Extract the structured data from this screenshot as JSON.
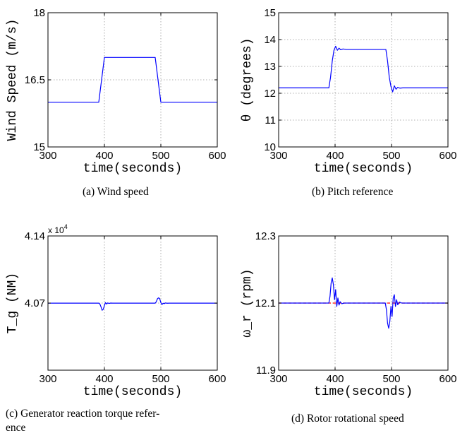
{
  "chart_data": [
    {
      "id": "a",
      "type": "line",
      "ylabel": "Wind Speed (m/s)",
      "xlabel": "time(seconds)",
      "xlim": [
        300,
        600
      ],
      "ylim": [
        15,
        18
      ],
      "xticks": [
        "300",
        "400",
        "500",
        "600"
      ],
      "yticks": [
        "15",
        "16.5",
        "18"
      ],
      "grid": true,
      "caption": "(a) Wind speed",
      "series": [
        {
          "color": "#0000ff",
          "x": [
            300,
            390,
            400,
            490,
            500,
            600
          ],
          "y": [
            16,
            16,
            17,
            17,
            16,
            16
          ]
        }
      ]
    },
    {
      "id": "b",
      "type": "line",
      "ylabel": "θ (degrees)",
      "xlabel": "time(seconds)",
      "xlim": [
        300,
        600
      ],
      "ylim": [
        10,
        15
      ],
      "xticks": [
        "300",
        "400",
        "500",
        "600"
      ],
      "yticks": [
        "10",
        "11",
        "12",
        "13",
        "14",
        "15"
      ],
      "grid": true,
      "caption": "(b) Pitch reference",
      "series": [
        {
          "color": "#0000ff",
          "x": [
            300,
            389,
            392,
            395,
            398,
            401,
            404,
            407,
            410,
            414,
            420,
            490,
            493,
            496,
            499,
            502,
            505,
            508,
            511,
            515,
            520,
            600
          ],
          "y": [
            12.2,
            12.2,
            12.6,
            13.2,
            13.6,
            13.75,
            13.6,
            13.68,
            13.62,
            13.65,
            13.63,
            13.63,
            13.2,
            12.6,
            12.25,
            12.05,
            12.28,
            12.15,
            12.22,
            12.19,
            12.2,
            12.2
          ]
        }
      ]
    },
    {
      "id": "c",
      "type": "line",
      "ylabel": "T_g (NM)",
      "xlabel": "time(seconds)",
      "xlim": [
        300,
        600
      ],
      "ylim": [
        4.0,
        4.14
      ],
      "y_exponent": "4",
      "y_multiplier": "x 10",
      "xticks": [
        "300",
        "400",
        "500",
        "600"
      ],
      "yticks": [
        "4.07",
        "4.14"
      ],
      "grid": true,
      "caption_lines": [
        "(c)  Generator  reaction  torque  refer-",
        "ence"
      ],
      "series": [
        {
          "color": "#0000ff",
          "x": [
            300,
            390,
            392,
            394,
            396,
            398,
            400,
            402,
            404,
            406,
            408,
            411,
            415,
            490,
            492,
            494,
            496,
            498,
            500,
            502,
            504,
            506,
            508,
            511,
            515,
            600
          ],
          "y": [
            4.0699,
            4.0699,
            4.069,
            4.066,
            4.0625,
            4.0635,
            4.0675,
            4.0705,
            4.069,
            4.0702,
            4.0696,
            4.07,
            4.0699,
            4.0699,
            4.0715,
            4.0745,
            4.0755,
            4.0745,
            4.0705,
            4.0685,
            4.0698,
            4.0694,
            4.0701,
            4.0698,
            4.0699,
            4.0699
          ]
        }
      ]
    },
    {
      "id": "d",
      "type": "line",
      "ylabel": "ω_r (rpm)",
      "xlabel": "time(seconds)",
      "xlim": [
        300,
        600
      ],
      "ylim": [
        11.9,
        12.3
      ],
      "xticks": [
        "300",
        "400",
        "500",
        "600"
      ],
      "yticks": [
        "11.9",
        "12.1",
        "12.3"
      ],
      "grid": true,
      "caption": "(d) Rotor rotational speed",
      "reference_line": {
        "y": 12.1,
        "color": "#ff0000",
        "style": "dashed"
      },
      "series": [
        {
          "color": "#0000ff",
          "x": [
            300,
            389,
            391,
            393,
            395,
            397,
            399,
            401,
            403,
            405,
            407,
            409,
            412,
            416,
            489,
            491,
            493,
            495,
            497,
            499,
            501,
            503,
            505,
            507,
            509,
            511,
            514,
            518,
            600
          ],
          "y": [
            12.1,
            12.1,
            12.12,
            12.16,
            12.175,
            12.155,
            12.11,
            12.14,
            12.09,
            12.115,
            12.094,
            12.104,
            12.098,
            12.1,
            12.1,
            12.08,
            12.04,
            12.025,
            12.045,
            12.09,
            12.06,
            12.115,
            12.125,
            12.09,
            12.11,
            12.095,
            12.103,
            12.1,
            12.1
          ]
        }
      ]
    }
  ]
}
